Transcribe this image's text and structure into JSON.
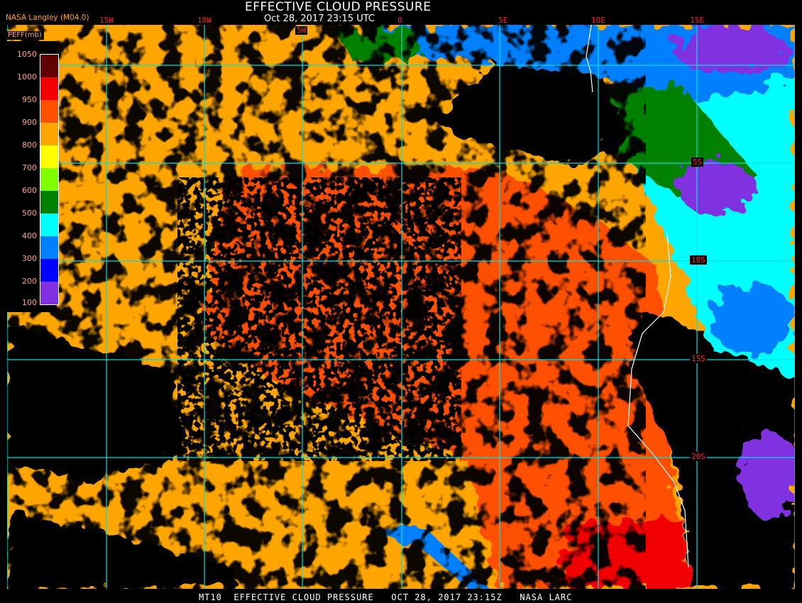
{
  "header": {
    "title": "EFFECTIVE CLOUD PRESSURE",
    "subtitle": "Oct 28, 2017 23:15 UTC",
    "producer": "NASA Langley (M04.0)"
  },
  "footer": {
    "text": "MT10  EFFECTIVE CLOUD PRESSURE   OCT 28, 2017 23:15Z   NASA LARC"
  },
  "longitude_labels": [
    "15W",
    "10W",
    "5W",
    "0",
    "5E",
    "10E",
    "15E"
  ],
  "latitude_labels": [
    "5S",
    "10S",
    "15S",
    "20S"
  ],
  "legend": {
    "title": "PEFF(mb)",
    "ticks": [
      "1050",
      "1000",
      "950",
      "900",
      "800",
      "700",
      "600",
      "500",
      "400",
      "300",
      "200",
      "100"
    ],
    "colors": [
      "#600000",
      "#f00000",
      "#ff5000",
      "#ffa500",
      "#ffff00",
      "#80ff00",
      "#008000",
      "#00ffff",
      "#0080ff",
      "#0000ff",
      "#8030e0"
    ]
  },
  "colors": {
    "grid": "#00e0e0",
    "label": "#ff2020",
    "coastline": "#ffffff",
    "no_cloud": "#000000"
  }
}
